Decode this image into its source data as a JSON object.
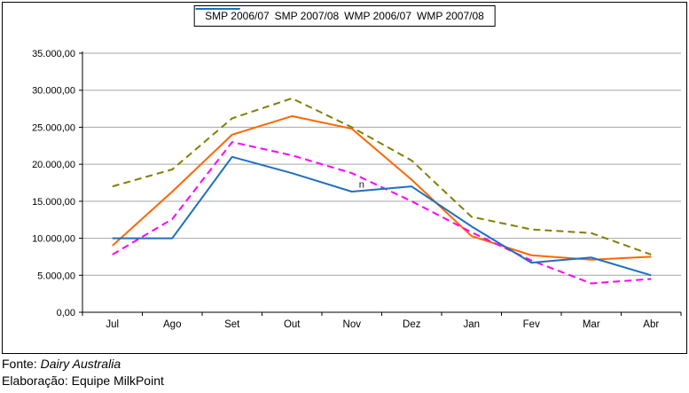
{
  "chart_data": {
    "type": "line",
    "title": "",
    "xlabel": "",
    "ylabel": "",
    "categories": [
      "Jul",
      "Ago",
      "Set",
      "Out",
      "Nov",
      "Dez",
      "Jan",
      "Fev",
      "Mar",
      "Abr"
    ],
    "y_axis": {
      "min": 0,
      "max": 35000,
      "step": 5000,
      "tick_labels_top_down": [
        "35.000,00",
        "30.000,00",
        "25.000,00",
        "20.000,00",
        "15.000,00",
        "10.000,00",
        "5.000,00",
        "0,00"
      ]
    },
    "grid": true,
    "legend_position": "top-center",
    "series": [
      {
        "name": "SMP 2006/07",
        "color": "#808000",
        "style": "dashed",
        "values": [
          17000,
          19300,
          26200,
          28900,
          25000,
          20500,
          12900,
          11200,
          10700,
          7800
        ]
      },
      {
        "name": "SMP 2007/08",
        "color": "#FF6600",
        "style": "solid",
        "values": [
          9000,
          16300,
          24000,
          26500,
          24800,
          17900,
          10300,
          7700,
          7100,
          7500
        ]
      },
      {
        "name": "WMP 2006/07",
        "color": "#FF00FF",
        "style": "dashed",
        "values": [
          7800,
          12600,
          23000,
          21200,
          18800,
          15000,
          10800,
          7000,
          3900,
          4500
        ]
      },
      {
        "name": "WMP 2007/08",
        "color": "#1F6FC0",
        "style": "solid",
        "values": [
          10000,
          10000,
          21000,
          18800,
          16300,
          17000,
          11600,
          6700,
          7400,
          5000
        ]
      }
    ],
    "annotations": [
      {
        "text": "n",
        "category_index": 4,
        "value": 17300
      }
    ],
    "colors": {
      "gridline": "#A6A6A6",
      "axis": "#000000",
      "frame_border": "#000000",
      "background": "#FFFFFF"
    }
  },
  "footer": {
    "fonte_label": "Fonte:",
    "fonte_value": "Dairy Australia",
    "elaboracao": "Elaboração: Equipe MilkPoint"
  }
}
